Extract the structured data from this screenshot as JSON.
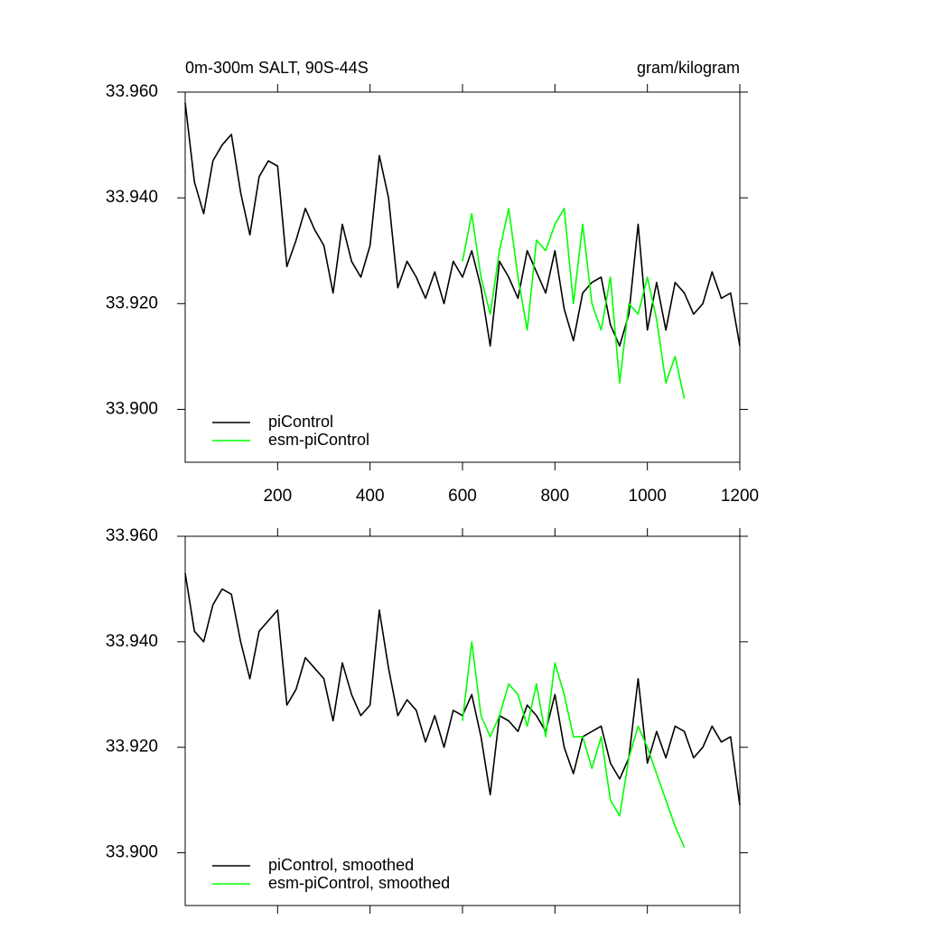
{
  "chart_data": [
    {
      "type": "line",
      "title": "0m-300m SALT, 90S-44S",
      "units": "gram/kilogram",
      "x": [
        0,
        20,
        40,
        60,
        80,
        100,
        120,
        140,
        160,
        180,
        200,
        220,
        240,
        260,
        280,
        300,
        320,
        340,
        360,
        380,
        400,
        420,
        440,
        460,
        480,
        500,
        520,
        540,
        560,
        580,
        600,
        620,
        640,
        660,
        680,
        700,
        720,
        740,
        760,
        780,
        800,
        820,
        840,
        860,
        880,
        900,
        920,
        940,
        960,
        980,
        1000,
        1020,
        1040,
        1060,
        1080,
        1100,
        1120,
        1140,
        1160,
        1180,
        1200
      ],
      "series": [
        {
          "name": "piControl",
          "color": "#000000",
          "values": [
            33.958,
            33.943,
            33.937,
            33.947,
            33.95,
            33.952,
            33.941,
            33.933,
            33.944,
            33.947,
            33.946,
            33.927,
            33.932,
            33.938,
            33.934,
            33.931,
            33.922,
            33.935,
            33.928,
            33.925,
            33.931,
            33.948,
            33.94,
            33.923,
            33.928,
            33.925,
            33.921,
            33.926,
            33.92,
            33.928,
            33.925,
            33.93,
            33.923,
            33.912,
            33.928,
            33.925,
            33.921,
            33.93,
            33.926,
            33.922,
            33.93,
            33.919,
            33.913,
            33.922,
            33.924,
            33.925,
            33.916,
            33.912,
            33.918,
            33.935,
            33.915,
            33.924,
            33.915,
            33.924,
            33.922,
            33.918,
            33.92,
            33.926,
            33.921,
            33.922,
            33.912
          ]
        },
        {
          "name": "esm-piControl",
          "color": "#00ff00",
          "values": [
            null,
            null,
            null,
            null,
            null,
            null,
            null,
            null,
            null,
            null,
            null,
            null,
            null,
            null,
            null,
            null,
            null,
            null,
            null,
            null,
            null,
            null,
            null,
            null,
            null,
            null,
            null,
            null,
            null,
            null,
            33.928,
            33.937,
            33.925,
            33.918,
            33.93,
            33.938,
            33.925,
            33.915,
            33.932,
            33.93,
            33.935,
            33.938,
            33.92,
            33.935,
            33.92,
            33.915,
            33.925,
            33.905,
            33.92,
            33.918,
            33.925,
            33.917,
            33.905,
            33.91,
            33.902,
            null,
            null,
            null,
            null,
            null,
            null
          ]
        }
      ],
      "xlim": [
        0,
        1200
      ],
      "xticks": [
        200,
        400,
        600,
        800,
        1000,
        1200
      ],
      "ylim": [
        33.89,
        33.96
      ],
      "yticks": [
        {
          "value": 33.9,
          "label": "33.900"
        },
        {
          "value": 33.92,
          "label": "33.920"
        },
        {
          "value": 33.94,
          "label": "33.940"
        },
        {
          "value": 33.96,
          "label": "33.960"
        }
      ],
      "legend": "lower left"
    },
    {
      "type": "line",
      "x": [
        0,
        20,
        40,
        60,
        80,
        100,
        120,
        140,
        160,
        180,
        200,
        220,
        240,
        260,
        280,
        300,
        320,
        340,
        360,
        380,
        400,
        420,
        440,
        460,
        480,
        500,
        520,
        540,
        560,
        580,
        600,
        620,
        640,
        660,
        680,
        700,
        720,
        740,
        760,
        780,
        800,
        820,
        840,
        860,
        880,
        900,
        920,
        940,
        960,
        980,
        1000,
        1020,
        1040,
        1060,
        1080,
        1100,
        1120,
        1140,
        1160,
        1180,
        1200
      ],
      "series": [
        {
          "name": "piControl, smoothed",
          "color": "#000000",
          "values": [
            33.953,
            33.942,
            33.94,
            33.947,
            33.95,
            33.949,
            33.94,
            33.933,
            33.942,
            33.944,
            33.946,
            33.928,
            33.931,
            33.937,
            33.935,
            33.933,
            33.925,
            33.936,
            33.93,
            33.926,
            33.928,
            33.946,
            33.935,
            33.926,
            33.929,
            33.927,
            33.921,
            33.926,
            33.92,
            33.927,
            33.926,
            33.93,
            33.922,
            33.911,
            33.926,
            33.925,
            33.923,
            33.928,
            33.926,
            33.923,
            33.93,
            33.92,
            33.915,
            33.922,
            33.923,
            33.924,
            33.917,
            33.914,
            33.918,
            33.933,
            33.917,
            33.923,
            33.918,
            33.924,
            33.923,
            33.918,
            33.92,
            33.924,
            33.921,
            33.922,
            33.909
          ]
        },
        {
          "name": "esm-piControl, smoothed",
          "color": "#00ff00",
          "values": [
            null,
            null,
            null,
            null,
            null,
            null,
            null,
            null,
            null,
            null,
            null,
            null,
            null,
            null,
            null,
            null,
            null,
            null,
            null,
            null,
            null,
            null,
            null,
            null,
            null,
            null,
            null,
            null,
            null,
            null,
            33.925,
            33.94,
            33.926,
            33.922,
            33.926,
            33.932,
            33.93,
            33.924,
            33.932,
            33.922,
            33.936,
            33.93,
            33.922,
            33.922,
            33.916,
            33.922,
            33.91,
            33.907,
            33.918,
            33.924,
            33.92,
            33.915,
            33.91,
            33.905,
            33.901,
            null,
            null,
            null,
            null,
            null,
            null
          ]
        }
      ],
      "xlim": [
        0,
        1200
      ],
      "ylim": [
        33.89,
        33.96
      ],
      "yticks": [
        {
          "value": 33.9,
          "label": "33.900"
        },
        {
          "value": 33.92,
          "label": "33.920"
        },
        {
          "value": 33.94,
          "label": "33.940"
        },
        {
          "value": 33.96,
          "label": "33.960"
        }
      ],
      "legend": "lower left"
    }
  ]
}
